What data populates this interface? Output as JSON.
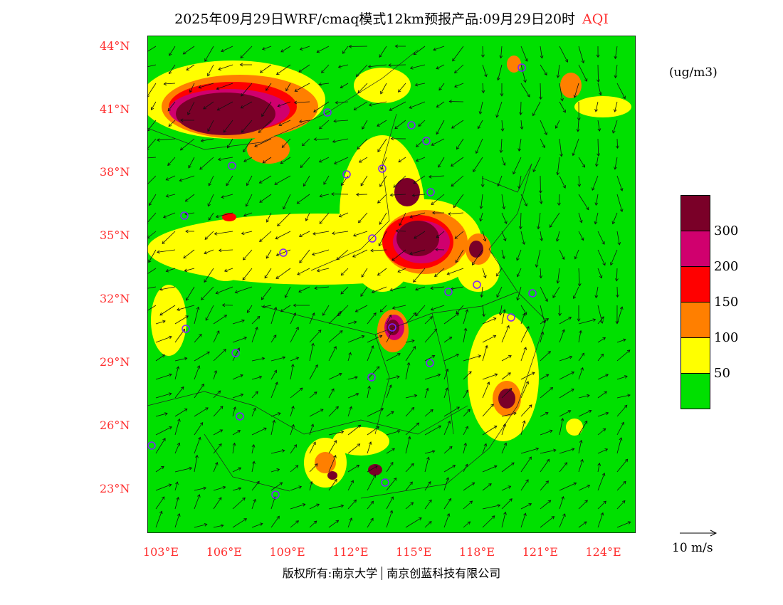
{
  "title": {
    "text": "2025年09月29日WRF/cmaq模式12km预报产品:09月29日20时",
    "variable": "AQI"
  },
  "lat_labels": [
    "44°N",
    "41°N",
    "38°N",
    "35°N",
    "32°N",
    "29°N",
    "26°N",
    "23°N"
  ],
  "lon_labels": [
    "103°E",
    "106°E",
    "109°E",
    "112°E",
    "115°E",
    "118°E",
    "121°E",
    "124°E"
  ],
  "legend": {
    "units": "(ug/m3)",
    "labels": [
      "300",
      "200",
      "150",
      "100",
      "50"
    ],
    "colors": [
      "#7a0028",
      "#d0006e",
      "#ff0000",
      "#ff7f00",
      "#ffff00",
      "#00e000"
    ]
  },
  "wind_scale": "10 m/s",
  "footer": {
    "left": "版权所有:南京大学",
    "right": "南京创蓝科技有限公司"
  }
}
